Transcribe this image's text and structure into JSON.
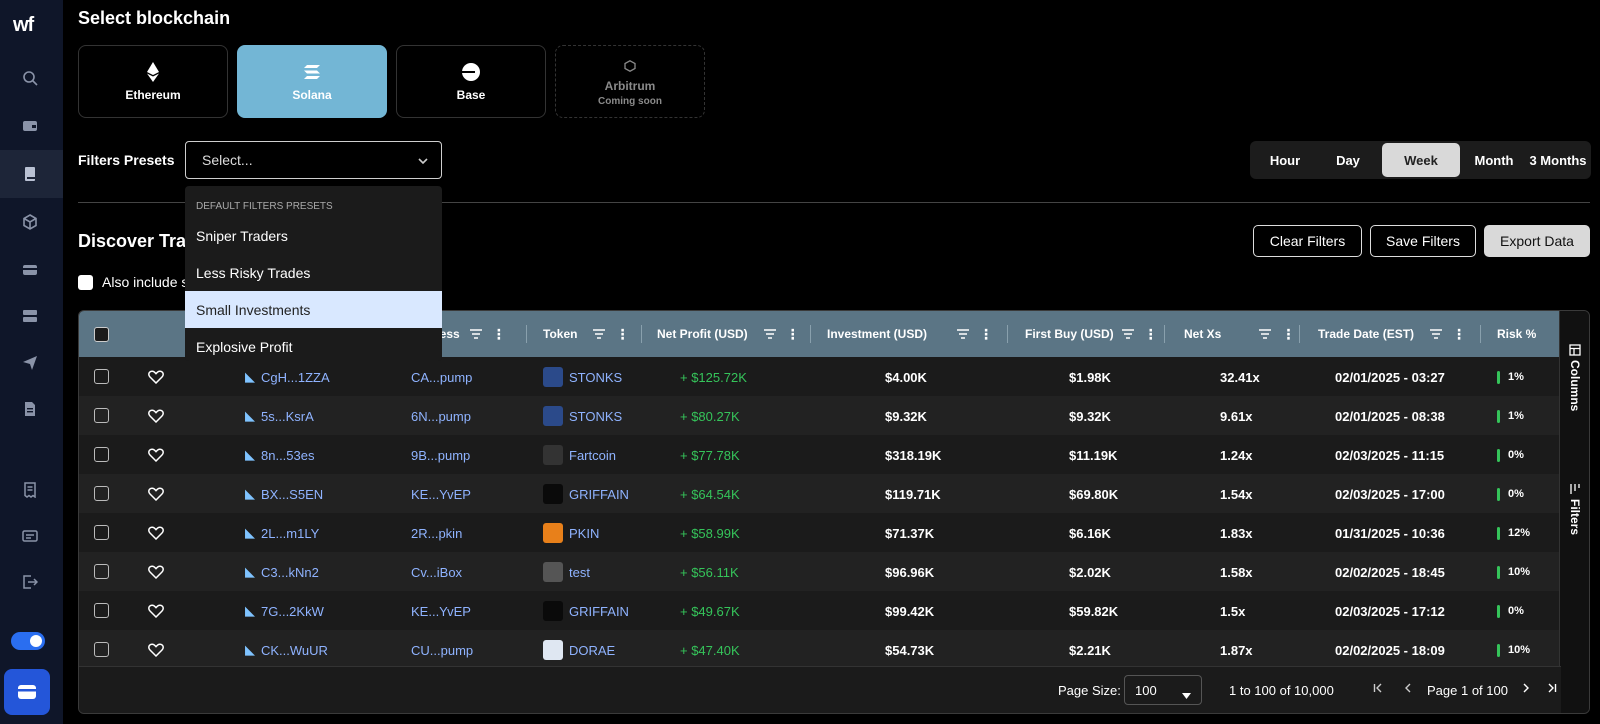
{
  "sidebar": {
    "logo": "wf",
    "icons": [
      "search-icon",
      "wallet-icon",
      "book-icon",
      "cube-icon",
      "card-icon",
      "server-icon",
      "send-icon",
      "document-icon",
      "receipt-icon",
      "id-card-icon",
      "logout-icon"
    ]
  },
  "header": {
    "title": "Select blockchain",
    "chains": [
      {
        "name": "Ethereum",
        "sub": ""
      },
      {
        "name": "Solana",
        "sub": ""
      },
      {
        "name": "Base",
        "sub": ""
      },
      {
        "name": "Arbitrum",
        "sub": "Coming soon"
      }
    ]
  },
  "filters": {
    "label": "Filters Presets",
    "placeholder": "Select...",
    "dropdown": {
      "heading": "DEFAULT FILTERS PRESETS",
      "items": [
        "Sniper Traders",
        "Less Risky Trades",
        "Small Investments",
        "Explosive Profit"
      ],
      "highlighted": "Small Investments"
    }
  },
  "period": {
    "options": [
      "Hour",
      "Day",
      "Week",
      "Month",
      "3 Months"
    ],
    "selected": "Week"
  },
  "discover": {
    "title": "Discover Trac",
    "include_label": "Also include s"
  },
  "actions": {
    "clear": "Clear Filters",
    "save": "Save Filters",
    "export": "Export Data"
  },
  "table": {
    "columns": [
      "ress",
      "Token",
      "Net Profit (USD)",
      "Investment (USD)",
      "First Buy (USD)",
      "Net Xs",
      "Trade Date (EST)",
      "Risk %"
    ],
    "rows": [
      {
        "wallet": "CgH...1ZZA",
        "addr": "CA...pump",
        "token": "STONKS",
        "profit": "+ $125.72K",
        "inv": "$4.00K",
        "first": "$1.98K",
        "xs": "32.41x",
        "date": "02/01/2025 - 03:27",
        "risk": "1%",
        "tok_color": "#2b4a8a"
      },
      {
        "wallet": "5s...KsrA",
        "addr": "6N...pump",
        "token": "STONKS",
        "profit": "+ $80.27K",
        "inv": "$9.32K",
        "first": "$9.32K",
        "xs": "9.61x",
        "date": "02/01/2025 - 08:38",
        "risk": "1%",
        "tok_color": "#2b4a8a"
      },
      {
        "wallet": "8n...53es",
        "addr": "9B...pump",
        "token": "Fartcoin",
        "profit": "+ $77.78K",
        "inv": "$318.19K",
        "first": "$11.19K",
        "xs": "1.24x",
        "date": "02/03/2025 - 11:15",
        "risk": "0%",
        "tok_color": "#333333"
      },
      {
        "wallet": "BX...S5EN",
        "addr": "KE...YvEP",
        "token": "GRIFFAIN",
        "profit": "+ $64.54K",
        "inv": "$119.71K",
        "first": "$69.80K",
        "xs": "1.54x",
        "date": "02/03/2025 - 17:00",
        "risk": "0%",
        "tok_color": "#0a0a0a"
      },
      {
        "wallet": "2L...m1LY",
        "addr": "2R...pkin",
        "token": "PKIN",
        "profit": "+ $58.99K",
        "inv": "$71.37K",
        "first": "$6.16K",
        "xs": "1.83x",
        "date": "01/31/2025 - 10:36",
        "risk": "12%",
        "tok_color": "#e8801a"
      },
      {
        "wallet": "C3...kNn2",
        "addr": "Cv...iBox",
        "token": "test",
        "profit": "+ $56.11K",
        "inv": "$96.96K",
        "first": "$2.02K",
        "xs": "1.58x",
        "date": "02/02/2025 - 18:45",
        "risk": "10%",
        "tok_color": "#555555"
      },
      {
        "wallet": "7G...2KkW",
        "addr": "KE...YvEP",
        "token": "GRIFFAIN",
        "profit": "+ $49.67K",
        "inv": "$99.42K",
        "first": "$59.82K",
        "xs": "1.5x",
        "date": "02/03/2025 - 17:12",
        "risk": "0%",
        "tok_color": "#0a0a0a"
      },
      {
        "wallet": "CK...WuUR",
        "addr": "CU...pump",
        "token": "DORAE",
        "profit": "+ $47.40K",
        "inv": "$54.73K",
        "first": "$2.21K",
        "xs": "1.87x",
        "date": "02/02/2025 - 18:09",
        "risk": "10%",
        "tok_color": "#dfe7f2"
      }
    ],
    "side_columns": "Columns",
    "side_filters": "Filters"
  },
  "pager": {
    "size_label": "Page Size:",
    "size_value": "100",
    "range": "1 to 100 of 10,000",
    "page": "Page 1 of 100"
  }
}
